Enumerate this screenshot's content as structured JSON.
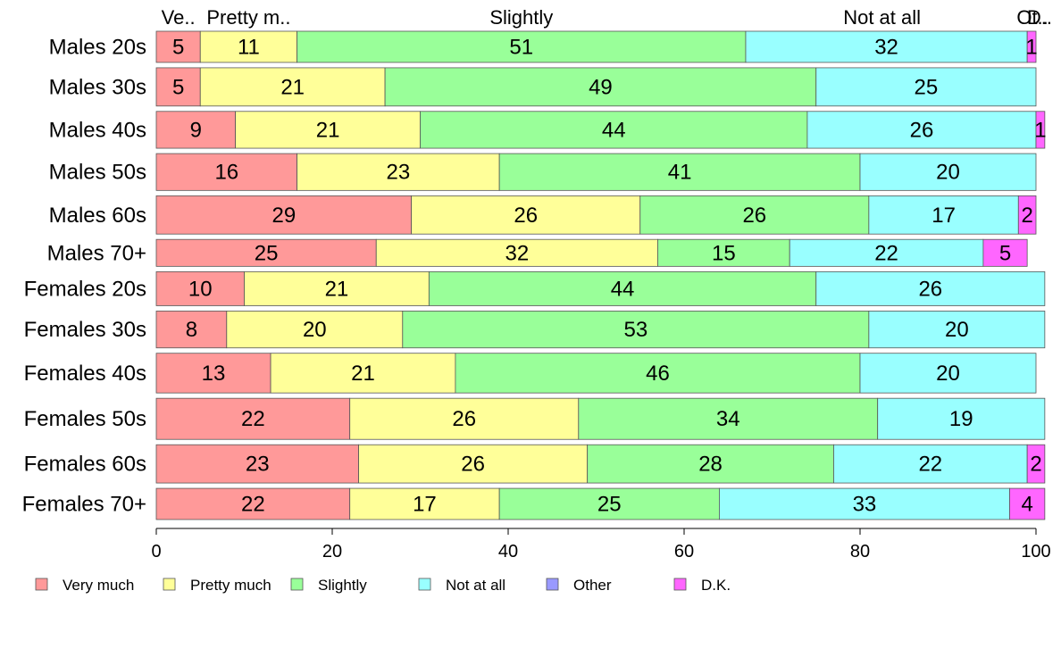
{
  "chart_data": {
    "type": "bar",
    "orientation": "horizontal",
    "stacked": true,
    "categories": [
      "Males 20s",
      "Males 30s",
      "Males 40s",
      "Males 50s",
      "Males 60s",
      "Males 70+",
      "Females 20s",
      "Females 30s",
      "Females 40s",
      "Females 50s",
      "Females 60s",
      "Females 70+"
    ],
    "bar_weights": [
      44,
      54,
      52,
      52,
      54,
      38,
      48,
      52,
      56,
      58,
      54,
      44
    ],
    "series": [
      {
        "name": "Very much",
        "color": "#ff9999",
        "values": [
          5,
          5,
          9,
          16,
          29,
          25,
          10,
          8,
          13,
          22,
          23,
          22
        ],
        "labels": [
          "5",
          "5",
          "9",
          "16",
          "29",
          "25",
          "10",
          "8",
          "13",
          "22",
          "23",
          "22"
        ]
      },
      {
        "name": "Pretty much",
        "color": "#ffff99",
        "values": [
          11,
          21,
          21,
          23,
          26,
          32,
          21,
          20,
          21,
          26,
          26,
          17
        ],
        "labels": [
          "11",
          "21",
          "21",
          "23",
          "26",
          "32",
          "21",
          "20",
          "21",
          "26",
          "26",
          "17"
        ]
      },
      {
        "name": "Slightly",
        "color": "#99ff99",
        "values": [
          51,
          49,
          44,
          41,
          26,
          15,
          44,
          53,
          46,
          34,
          28,
          25
        ],
        "labels": [
          "51",
          "49",
          "44",
          "41",
          "26",
          "15",
          "44",
          "53",
          "46",
          "34",
          "28",
          "25"
        ]
      },
      {
        "name": "Not at all",
        "color": "#99ffff",
        "values": [
          32,
          25,
          26,
          20,
          17,
          22,
          26,
          20,
          20,
          19,
          22,
          33
        ],
        "labels": [
          "32",
          "25",
          "26",
          "20",
          "17",
          "22",
          "26",
          "20",
          "20",
          "19",
          "22",
          "33"
        ]
      },
      {
        "name": "Other",
        "color": "#9999ff",
        "values": [
          0,
          0,
          0,
          0,
          0,
          0,
          0,
          0,
          0,
          0,
          0,
          0
        ],
        "labels": [
          "",
          "",
          "",
          "",
          "",
          "",
          "",
          "",
          "",
          "",
          "",
          ""
        ]
      },
      {
        "name": "D.K.",
        "color": "#ff66ff",
        "values": [
          1,
          0,
          1,
          0,
          2,
          5,
          0,
          0,
          0,
          0,
          2,
          4
        ],
        "labels": [
          "1",
          "",
          "1",
          "",
          "2",
          "5",
          "",
          "",
          "",
          "",
          "2",
          "4"
        ]
      }
    ],
    "top_labels": [
      {
        "text": "Ve..",
        "at": 2.5
      },
      {
        "text": "Pretty m..",
        "at": 10.5
      },
      {
        "text": "Slightly",
        "at": 41.5
      },
      {
        "text": "Not at all",
        "at": 82.5
      },
      {
        "text": "Ot..",
        "at": 99.6
      },
      {
        "text": "D..",
        "at": 100.4
      }
    ],
    "x_ticks": [
      0,
      20,
      40,
      60,
      80,
      100
    ],
    "x_tick_labels": [
      "0",
      "20",
      "40",
      "60",
      "80",
      "100"
    ],
    "xlim": [
      0,
      100
    ],
    "grid": false,
    "legend_position": "bottom"
  }
}
